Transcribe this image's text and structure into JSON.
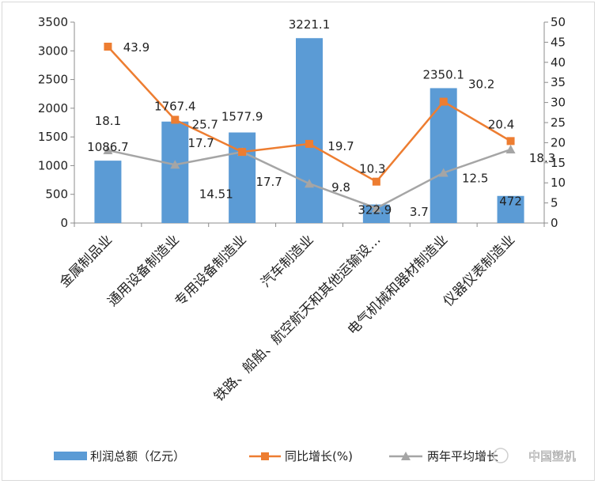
{
  "chart_data": {
    "type": "bar",
    "categories": [
      "金属制品业",
      "通用设备制造业",
      "专用设备制造业",
      "汽车制造业",
      "铁路、船舶、航空航天和其他运输设…",
      "电气机械和器材制造业",
      "仪器仪表制造业"
    ],
    "series": [
      {
        "name": "利润总额（亿元）",
        "type": "bar",
        "axis": "left",
        "values": [
          1086.7,
          1767.4,
          1577.9,
          3221.1,
          322.9,
          2350.1,
          472
        ],
        "labels": [
          "1086.7",
          "1767.4",
          "1577.9",
          "3221.1",
          "322.9",
          "2350.1",
          "472"
        ],
        "color": "#5b9bd5"
      },
      {
        "name": "同比增长(%)",
        "type": "line",
        "axis": "right",
        "values": [
          43.9,
          25.7,
          17.7,
          19.7,
          10.3,
          30.2,
          20.4
        ],
        "labels": [
          "43.9",
          "25.7",
          "17.7",
          "19.7",
          "10.3",
          "30.2",
          "20.4"
        ],
        "color": "#ed7d31"
      },
      {
        "name": "两年平均增长",
        "type": "line",
        "axis": "right",
        "values": [
          18.1,
          14.51,
          17.7,
          9.8,
          3.7,
          12.5,
          18.3
        ],
        "labels": [
          "18.1",
          "14.51",
          "17.7",
          "9.8",
          "3.7",
          "12.5",
          "18.3"
        ],
        "color": "#a5a5a5"
      }
    ],
    "y_left": {
      "min": 0,
      "max": 3500,
      "step": 500,
      "ticks": [
        "0",
        "500",
        "1000",
        "1500",
        "2000",
        "2500",
        "3000",
        "3500"
      ]
    },
    "y_right": {
      "min": 0,
      "max": 50,
      "step": 5,
      "ticks": [
        "0",
        "5",
        "10",
        "15",
        "20",
        "25",
        "30",
        "35",
        "40",
        "45",
        "50"
      ]
    },
    "legend_position": "bottom",
    "grid": false
  },
  "watermark": "中国塑机"
}
